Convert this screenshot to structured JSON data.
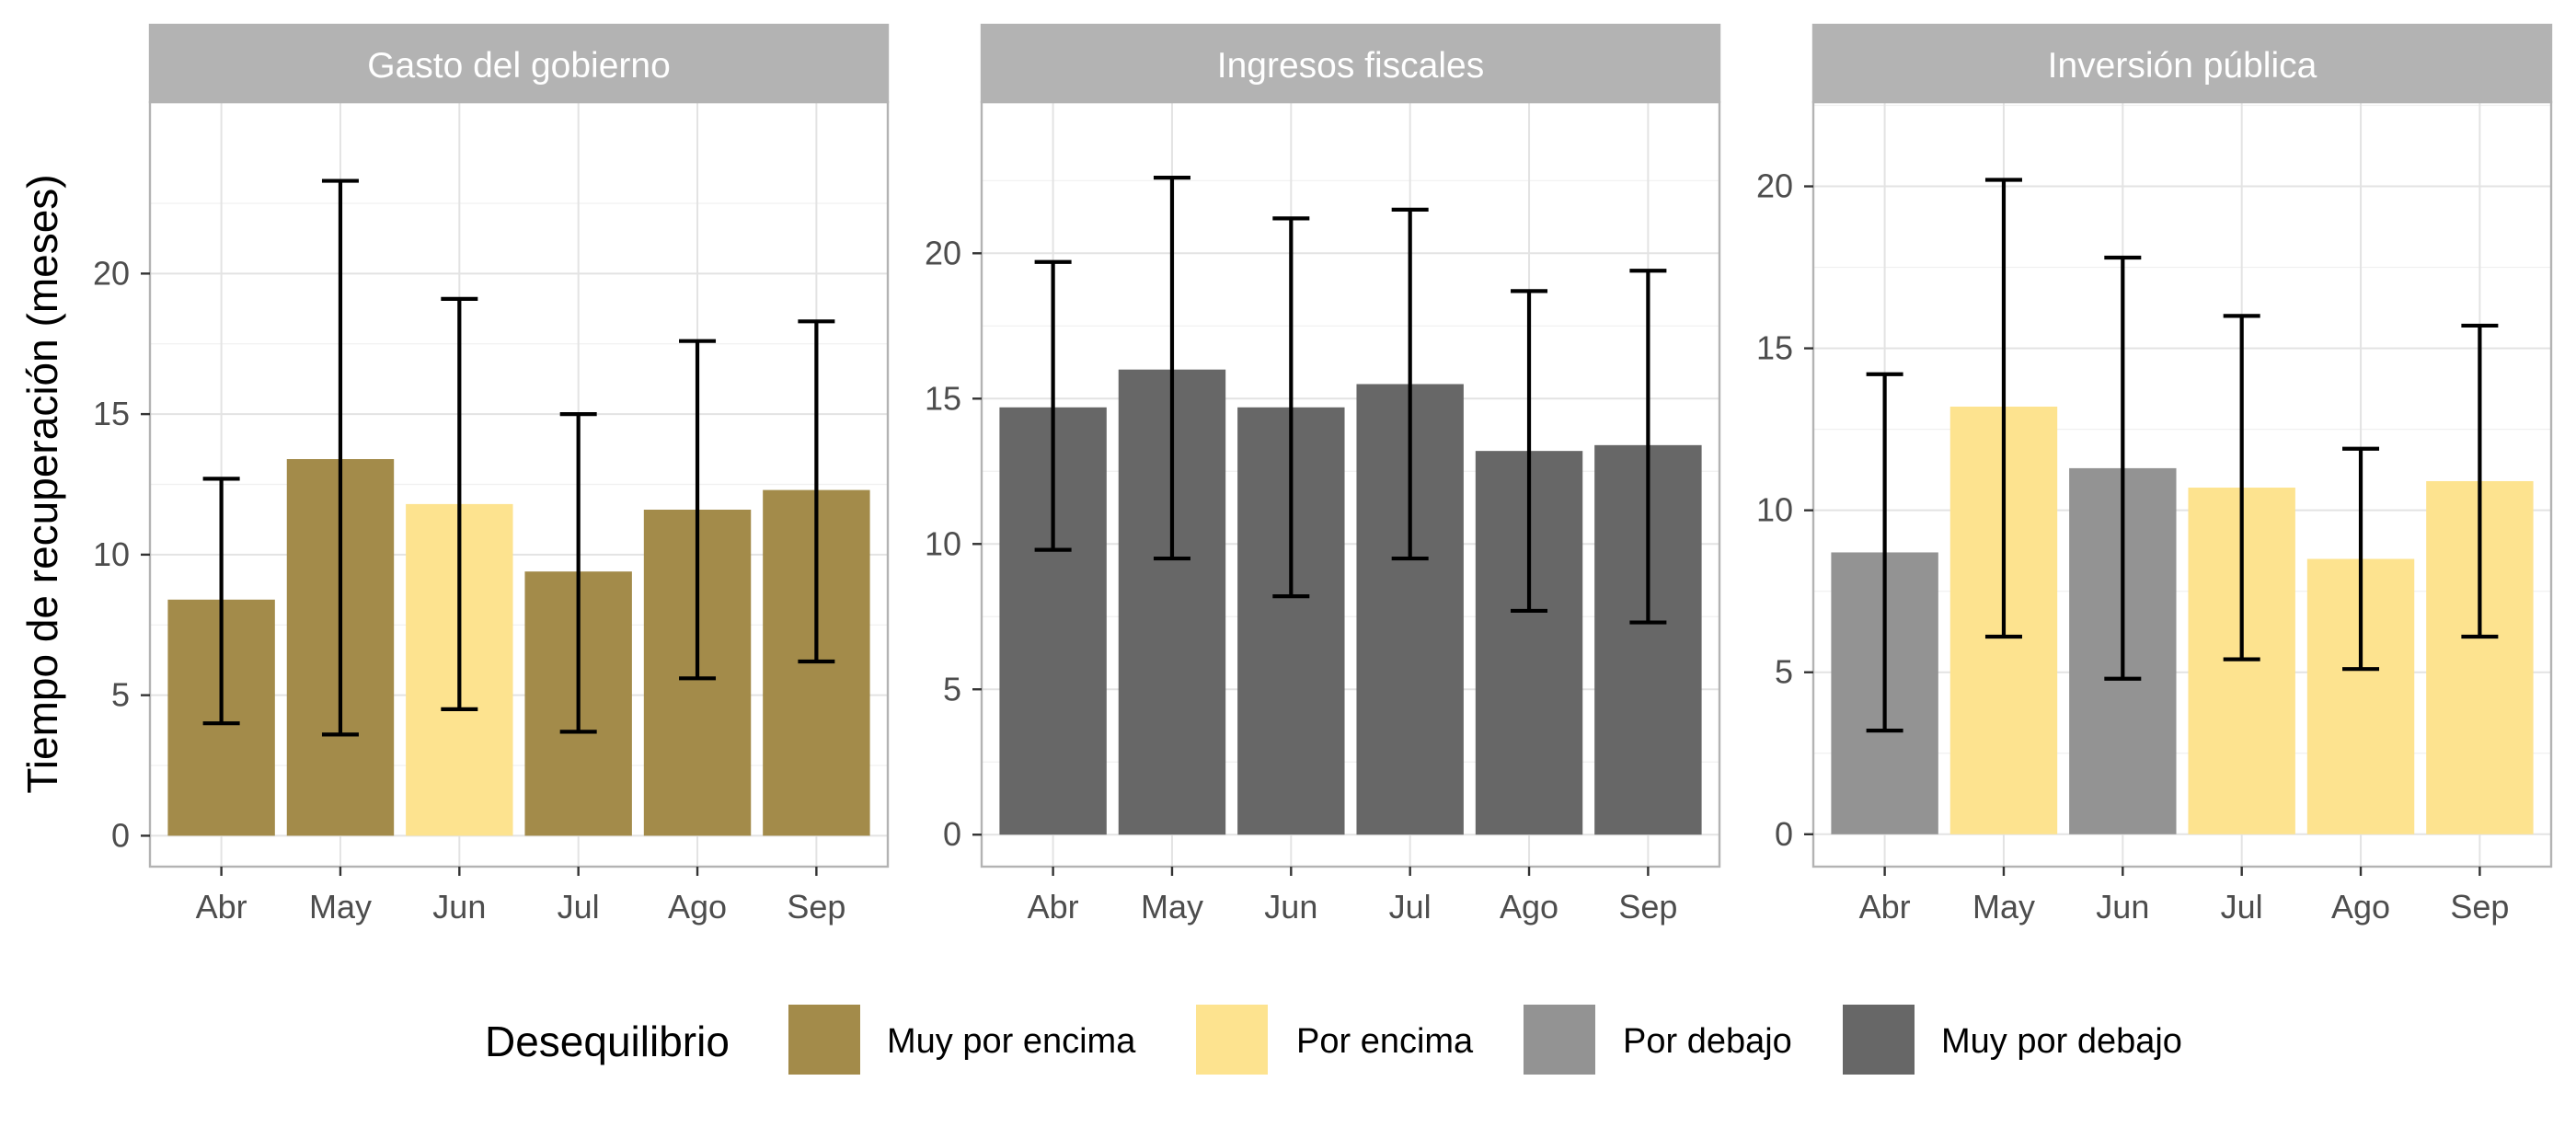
{
  "chart_data": {
    "type": "bar",
    "ylabel": "Tiempo de recuperación (meses)",
    "categories": [
      "Abr",
      "May",
      "Jun",
      "Jul",
      "Ago",
      "Sep"
    ],
    "legend": {
      "title": "Desequilibrio",
      "placement": "bottom",
      "entries": [
        {
          "key": "muy_por_encima",
          "label": "Muy por encima",
          "color": "#a38b4a"
        },
        {
          "key": "por_encima",
          "label": "Por encima",
          "color": "#fde38f"
        },
        {
          "key": "por_debajo",
          "label": "Por debajo",
          "color": "#939393"
        },
        {
          "key": "muy_por_debajo",
          "label": "Muy por debajo",
          "color": "#676767"
        }
      ]
    },
    "grid": true,
    "panels": [
      {
        "title": "Gasto del gobierno",
        "ylim": [
          -1.1,
          26.1
        ],
        "yticks": [
          0,
          5,
          10,
          15,
          20
        ],
        "bars": [
          {
            "category": "Abr",
            "value": 8.4,
            "lower": 4.0,
            "upper": 12.7,
            "group": "muy_por_encima"
          },
          {
            "category": "May",
            "value": 13.4,
            "lower": 3.6,
            "upper": 23.3,
            "group": "muy_por_encima"
          },
          {
            "category": "Jun",
            "value": 11.8,
            "lower": 4.5,
            "upper": 19.1,
            "group": "por_encima"
          },
          {
            "category": "Jul",
            "value": 9.4,
            "lower": 3.7,
            "upper": 15.0,
            "group": "muy_por_encima"
          },
          {
            "category": "Ago",
            "value": 11.6,
            "lower": 5.6,
            "upper": 17.6,
            "group": "muy_por_encima"
          },
          {
            "category": "Sep",
            "value": 12.3,
            "lower": 6.2,
            "upper": 18.3,
            "group": "muy_por_encima"
          }
        ]
      },
      {
        "title": "Ingresos fiscales",
        "ylim": [
          -1.1,
          25.2
        ],
        "yticks": [
          0,
          5,
          10,
          15,
          20
        ],
        "bars": [
          {
            "category": "Abr",
            "value": 14.7,
            "lower": 9.8,
            "upper": 19.7,
            "group": "muy_por_debajo"
          },
          {
            "category": "May",
            "value": 16.0,
            "lower": 9.5,
            "upper": 22.6,
            "group": "muy_por_debajo"
          },
          {
            "category": "Jun",
            "value": 14.7,
            "lower": 8.2,
            "upper": 21.2,
            "group": "muy_por_debajo"
          },
          {
            "category": "Jul",
            "value": 15.5,
            "lower": 9.5,
            "upper": 21.5,
            "group": "muy_por_debajo"
          },
          {
            "category": "Ago",
            "value": 13.2,
            "lower": 7.7,
            "upper": 18.7,
            "group": "muy_por_debajo"
          },
          {
            "category": "Sep",
            "value": 13.4,
            "lower": 7.3,
            "upper": 19.4,
            "group": "muy_por_debajo"
          }
        ]
      },
      {
        "title": "Inversión pública",
        "ylim": [
          -1.0,
          22.6
        ],
        "yticks": [
          0,
          5,
          10,
          15,
          20
        ],
        "bars": [
          {
            "category": "Abr",
            "value": 8.7,
            "lower": 3.2,
            "upper": 14.2,
            "group": "por_debajo"
          },
          {
            "category": "May",
            "value": 13.2,
            "lower": 6.1,
            "upper": 20.2,
            "group": "por_encima"
          },
          {
            "category": "Jun",
            "value": 11.3,
            "lower": 4.8,
            "upper": 17.8,
            "group": "por_debajo"
          },
          {
            "category": "Jul",
            "value": 10.7,
            "lower": 5.4,
            "upper": 16.0,
            "group": "por_encima"
          },
          {
            "category": "Ago",
            "value": 8.5,
            "lower": 5.1,
            "upper": 11.9,
            "group": "por_encima"
          },
          {
            "category": "Sep",
            "value": 10.9,
            "lower": 6.1,
            "upper": 15.7,
            "group": "por_encima"
          }
        ]
      }
    ]
  }
}
